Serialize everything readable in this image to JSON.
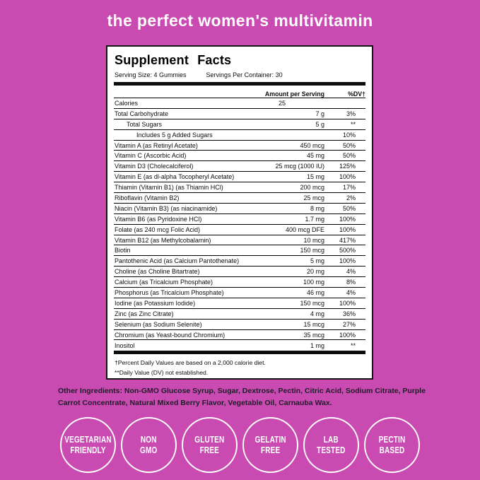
{
  "page": {
    "background_color": "#c94bb2",
    "accent_text_color": "#ffffff"
  },
  "title": "the perfect women's multivitamin",
  "label": {
    "heading": "Supplement Facts",
    "serving_size": "Serving Size: 4 Gummies",
    "servings_per_container": "Servings Per Container: 30",
    "col_amount": "Amount per Serving",
    "col_dv": "%DV†",
    "rows": [
      {
        "name": "Calories",
        "amount": "25",
        "dv": "",
        "indent": 0
      },
      {
        "name": "Total Carbohydrate",
        "amount": "7 g",
        "dv": "3%",
        "indent": 0
      },
      {
        "name": "Total Sugars",
        "amount": "5 g",
        "dv": "**",
        "indent": 1
      },
      {
        "name": "Includes 5 g Added Sugars",
        "amount": "",
        "dv": "10%",
        "indent": 2
      },
      {
        "name": "Vitamin A (as Retinyl Acetate)",
        "amount": "450 mcg",
        "dv": "50%",
        "indent": 0
      },
      {
        "name": "Vitamin C (Ascorbic Acid)",
        "amount": "45 mg",
        "dv": "50%",
        "indent": 0
      },
      {
        "name": "Vitamin D3 (Cholecalciferol)",
        "amount": "25 mcg (1000 IU)",
        "dv": "125%",
        "indent": 0
      },
      {
        "name": "Vitamin E (as dl-alpha Tocopheryl Acetate)",
        "amount": "15 mg",
        "dv": "100%",
        "indent": 0
      },
      {
        "name": "Thiamin (Vitamin B1) (as Thiamin HCl)",
        "amount": "200 mcg",
        "dv": "17%",
        "indent": 0
      },
      {
        "name": "Riboflavin (Vitamin B2)",
        "amount": "25 mcg",
        "dv": "2%",
        "indent": 0
      },
      {
        "name": "Niacin (Vitamin B3) (as niacinamide)",
        "amount": "8 mg",
        "dv": "50%",
        "indent": 0
      },
      {
        "name": "Vitamin B6 (as Pyridoxine HCl)",
        "amount": "1.7 mg",
        "dv": "100%",
        "indent": 0
      },
      {
        "name": "Folate (as 240 mcg Folic Acid)",
        "amount": "400 mcg DFE",
        "dv": "100%",
        "indent": 0
      },
      {
        "name": "Vitamin B12 (as Methylcobalamin)",
        "amount": "10 mcg",
        "dv": "417%",
        "indent": 0
      },
      {
        "name": "Biotin",
        "amount": "150 mcg",
        "dv": "500%",
        "indent": 0
      },
      {
        "name": "Pantothenic Acid (as Calcium Pantothenate)",
        "amount": "5 mg",
        "dv": "100%",
        "indent": 0
      },
      {
        "name": "Choline (as Choline Bitartrate)",
        "amount": "20 mg",
        "dv": "4%",
        "indent": 0
      },
      {
        "name": "Calcium (as Tricalcium Phosphate)",
        "amount": "100 mg",
        "dv": "8%",
        "indent": 0
      },
      {
        "name": "Phosphorus (as Tricalcium Phosphate)",
        "amount": "46 mg",
        "dv": "4%",
        "indent": 0
      },
      {
        "name": "Iodine (as Potassium Iodide)",
        "amount": "150 mcg",
        "dv": "100%",
        "indent": 0
      },
      {
        "name": "Zinc (as Zinc Citrate)",
        "amount": "4 mg",
        "dv": "36%",
        "indent": 0
      },
      {
        "name": "Selenium (as Sodium Selenite)",
        "amount": "15 mcg",
        "dv": "27%",
        "indent": 0
      },
      {
        "name": "Chromium (as Yeast-bound Chromium)",
        "amount": "35 mcg",
        "dv": "100%",
        "indent": 0
      },
      {
        "name": "Inositol",
        "amount": "1 mg",
        "dv": "**",
        "indent": 0
      }
    ],
    "footnote1": "†Percent Daily Values are based on a 2,000 calorie diet.",
    "footnote2": "**Daily Value (DV) not established."
  },
  "other_ingredients": "Other Ingredients: Non-GMO Glucose Syrup, Sugar, Dextrose, Pectin, Citric Acid, Sodium Citrate, Purple Carrot Concentrate, Natural Mixed Berry Flavor,  Vegetable Oil, Carnauba Wax.",
  "badges": [
    {
      "line1": "VEGETARIAN",
      "line2": "FRIENDLY"
    },
    {
      "line1": "NON",
      "line2": "GMO"
    },
    {
      "line1": "GLUTEN",
      "line2": "FREE"
    },
    {
      "line1": "GELATIN",
      "line2": "FREE"
    },
    {
      "line1": "LAB",
      "line2": "TESTED"
    },
    {
      "line1": "PECTIN",
      "line2": "BASED"
    }
  ]
}
